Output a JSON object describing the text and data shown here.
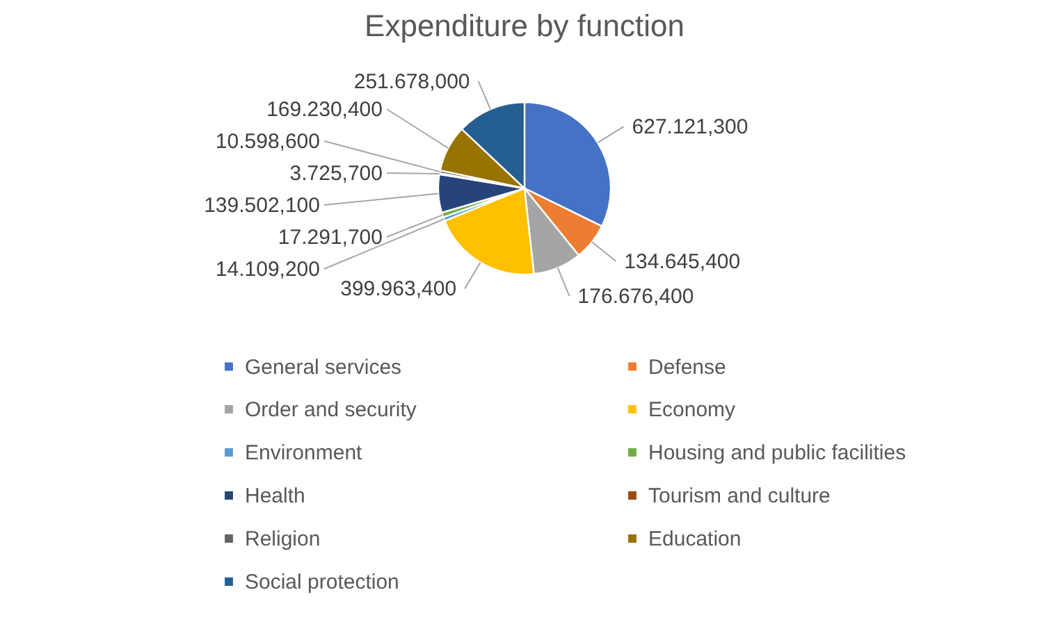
{
  "chart_data": {
    "type": "pie",
    "title": "Expenditure by function",
    "categories": [
      "General services",
      "Defense",
      "Order and security",
      "Economy",
      "Environment",
      "Housing and public facilities",
      "Health",
      "Tourism and culture",
      "Religion",
      "Education",
      "Social protection"
    ],
    "values": [
      627121.3,
      134645.4,
      176676.4,
      399963.4,
      14109.2,
      17291.7,
      139502.1,
      3725.7,
      10598.6,
      169230.4,
      251678.0
    ],
    "value_labels": [
      "627.121,300",
      "134.645,400",
      "176.676,400",
      "399.963,400",
      "14.109,200",
      "17.291,700",
      "139.502,100",
      "3.725,700",
      "10.598,600",
      "169.230,400",
      "251.678,000"
    ],
    "colors": [
      "#4472c4",
      "#ed7d31",
      "#a5a5a5",
      "#ffc000",
      "#5b9bd5",
      "#70ad47",
      "#264478",
      "#9e480e",
      "#636363",
      "#997300",
      "#255e91"
    ],
    "legend": "bottom"
  }
}
